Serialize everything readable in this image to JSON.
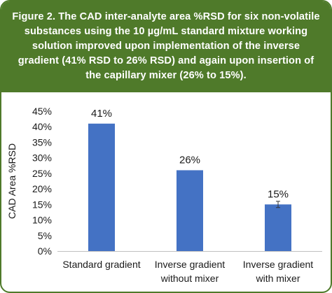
{
  "figure": {
    "caption": "Figure 2. The CAD inter-analyte area %RSD for six non-volatile substances using the 10 µg/mL standard mixture working solution improved upon implementation of the inverse gradient (41% RSD to 26% RSD) and again upon insertion of the capillary mixer (26% to 15%)."
  },
  "colors": {
    "header_bg": "#4f7a2a",
    "bar": "#4472c4",
    "axis": "#bfbfbf"
  },
  "chart_data": {
    "type": "bar",
    "categories": [
      [
        "Standard gradient"
      ],
      [
        "Inverse gradient",
        "without mixer"
      ],
      [
        "Inverse gradient",
        "with mixer"
      ]
    ],
    "values": [
      41,
      26,
      15
    ],
    "data_labels": [
      "41%",
      "26%",
      "15%"
    ],
    "error_bars": [
      null,
      null,
      1.0
    ],
    "ylabel": "CAD Area %RSD",
    "ylim": [
      0,
      45
    ],
    "yticks": [
      "0%",
      "5%",
      "10%",
      "15%",
      "20%",
      "25%",
      "30%",
      "35%",
      "40%",
      "45%"
    ],
    "grid": false
  }
}
